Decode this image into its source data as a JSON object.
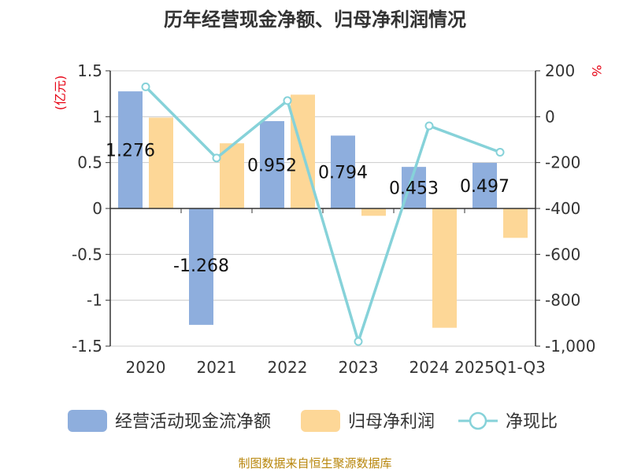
{
  "chart_data": {
    "type": "bar",
    "title": "历年经营现金净额、归母净利润情况",
    "categories": [
      "2020",
      "2021",
      "2022",
      "2023",
      "2024",
      "2025Q1-Q3"
    ],
    "series": [
      {
        "name": "经营活动现金流净额",
        "axis": "left",
        "kind": "bar",
        "color": "#8eaedd",
        "values": [
          1.276,
          -1.268,
          0.952,
          0.794,
          0.453,
          0.497
        ],
        "labels": [
          "1.276",
          "-1.268",
          "0.952",
          "0.794",
          "0.453",
          "0.497"
        ]
      },
      {
        "name": "归母净利润",
        "axis": "left",
        "kind": "bar",
        "color": "#fdd797",
        "values": [
          0.99,
          0.71,
          1.24,
          -0.08,
          -1.3,
          -0.32
        ]
      },
      {
        "name": "净现比",
        "axis": "right",
        "kind": "line",
        "color": "#86d2d9",
        "values": [
          130,
          -180,
          70,
          -980,
          -40,
          -155
        ]
      }
    ],
    "y_left": {
      "label": "(亿元)",
      "ylim": [
        -1.5,
        1.5
      ],
      "ticks": [
        1.5,
        1,
        0.5,
        0,
        -0.5,
        -1,
        -1.5
      ],
      "tick_labels": [
        "1.5",
        "1",
        "0.5",
        "0",
        "-0.5",
        "-1",
        "-1.5"
      ]
    },
    "y_right": {
      "label": "%",
      "ylim": [
        -1000,
        200
      ],
      "ticks": [
        200,
        0,
        -200,
        -400,
        -600,
        -800,
        -1000
      ],
      "tick_labels": [
        "200",
        "0",
        "-200",
        "-400",
        "-600",
        "-800",
        "-1,000"
      ]
    },
    "legend_position": "bottom",
    "grid": true,
    "source": "制图数据来自恒生聚源数据库"
  }
}
